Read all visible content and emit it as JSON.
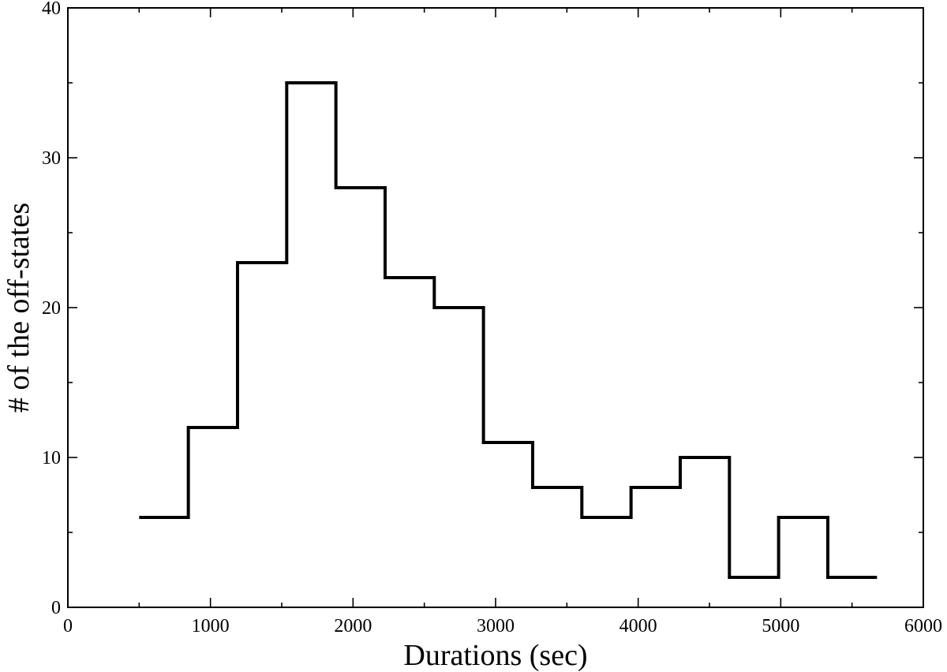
{
  "chart_data": {
    "type": "line",
    "style": "step-histogram",
    "xlabel": "Durations (sec)",
    "ylabel": "# of the off-states",
    "xlim": [
      0,
      6000
    ],
    "ylim": [
      0,
      40
    ],
    "x_major_ticks": [
      0,
      1000,
      2000,
      3000,
      4000,
      5000,
      6000
    ],
    "y_major_ticks": [
      0,
      10,
      20,
      30,
      40
    ],
    "x_tick_labels": [
      "0",
      "1000",
      "2000",
      "3000",
      "4000",
      "5000",
      "6000"
    ],
    "y_tick_labels": [
      "0",
      "10",
      "20",
      "30",
      "40"
    ],
    "grid": false,
    "legend": "none",
    "line_color": "#000000",
    "bins": [
      {
        "x_start": 500,
        "x_end": 845,
        "count": 6
      },
      {
        "x_start": 845,
        "x_end": 1190,
        "count": 12
      },
      {
        "x_start": 1190,
        "x_end": 1535,
        "count": 23
      },
      {
        "x_start": 1535,
        "x_end": 1880,
        "count": 35
      },
      {
        "x_start": 1880,
        "x_end": 2225,
        "count": 28
      },
      {
        "x_start": 2225,
        "x_end": 2570,
        "count": 22
      },
      {
        "x_start": 2570,
        "x_end": 2915,
        "count": 20
      },
      {
        "x_start": 2915,
        "x_end": 3260,
        "count": 11
      },
      {
        "x_start": 3260,
        "x_end": 3605,
        "count": 8
      },
      {
        "x_start": 3605,
        "x_end": 3950,
        "count": 6
      },
      {
        "x_start": 3950,
        "x_end": 4295,
        "count": 8
      },
      {
        "x_start": 4295,
        "x_end": 4640,
        "count": 10
      },
      {
        "x_start": 4640,
        "x_end": 4985,
        "count": 2
      },
      {
        "x_start": 4985,
        "x_end": 5330,
        "count": 6
      },
      {
        "x_start": 5330,
        "x_end": 5675,
        "count": 2
      }
    ]
  }
}
